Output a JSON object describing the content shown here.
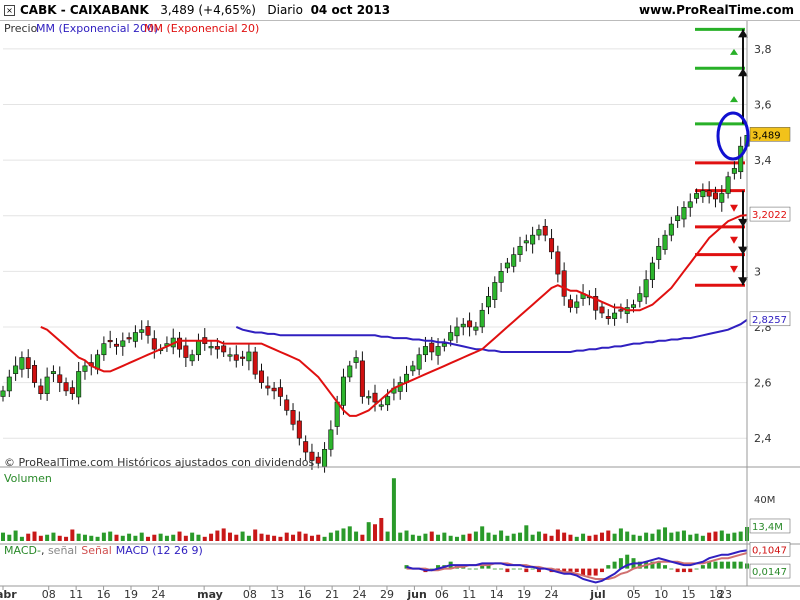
{
  "header": {
    "close_glyph": "×",
    "symbol": "CABK - CAIXABANK",
    "last_change": "3,489 (+4,65%)",
    "period": "Diario",
    "date": "04 oct 2013",
    "site": "www.ProRealTime.com"
  },
  "price_panel": {
    "legend_price": "Precio",
    "legend_mm200": "MM (Exponencial 200)",
    "legend_mm20": "MM (Exponencial 20)",
    "watermark": "© ProRealTime.com  Históricos ajustados con dividendos",
    "y_ticks": [
      "2,4",
      "2,6",
      "2,8",
      "3",
      "3,2",
      "3,4",
      "3,6",
      "3,8"
    ],
    "last_price_badge": "3,489",
    "mm20_badge": "3,2022",
    "mm200_badge": "2,8257"
  },
  "volume_panel": {
    "label": "Volumen",
    "y_tick": "40M",
    "last_badge": "13,4M"
  },
  "macd_panel": {
    "label_macd": "MACD-",
    "label_sep": ", ",
    "label_signal": "señal",
    "label_signal2": "Señal",
    "label_params": "MACD (12 26 9)",
    "badge_top": "0,1047",
    "badge_bottom": "0,0147"
  },
  "x_axis": {
    "labels": [
      {
        "text": "abr",
        "bold": true,
        "idx": 0
      },
      {
        "text": "08",
        "idx": 5
      },
      {
        "text": "11",
        "idx": 8
      },
      {
        "text": "16",
        "idx": 11
      },
      {
        "text": "19",
        "idx": 14
      },
      {
        "text": "24",
        "idx": 17
      },
      {
        "text": "may",
        "bold": true,
        "idx": 22
      },
      {
        "text": "08",
        "idx": 27
      },
      {
        "text": "13",
        "idx": 30
      },
      {
        "text": "16",
        "idx": 33
      },
      {
        "text": "21",
        "idx": 36
      },
      {
        "text": "24",
        "idx": 39
      },
      {
        "text": "29",
        "idx": 42
      },
      {
        "text": "jun",
        "bold": true,
        "idx": 45
      },
      {
        "text": "06",
        "idx": 48
      },
      {
        "text": "11",
        "idx": 51
      },
      {
        "text": "14",
        "idx": 54
      },
      {
        "text": "19",
        "idx": 57
      },
      {
        "text": "24",
        "idx": 60
      },
      {
        "text": "jul",
        "bold": true,
        "idx": 65
      },
      {
        "text": "05",
        "idx": 69
      },
      {
        "text": "10",
        "idx": 72
      },
      {
        "text": "15",
        "idx": 75
      },
      {
        "text": "18",
        "idx": 78
      },
      {
        "text": "23",
        "idx": 81
      }
    ]
  },
  "colors": {
    "up": "#2db52d",
    "down": "#d01010",
    "mm20": "#e01010",
    "mm200": "#3020c0",
    "volume": "#2a9a2a",
    "volume_down": "#c81818",
    "level_green": "#28b028",
    "level_red": "#e01010"
  },
  "chart_data": {
    "type": "candlestick",
    "title": "CABK - CAIXABANK",
    "ylim": [
      2.3,
      3.9
    ],
    "close": [
      2.57,
      2.62,
      2.66,
      2.69,
      2.65,
      2.6,
      2.56,
      2.62,
      2.64,
      2.6,
      2.57,
      2.56,
      2.64,
      2.66,
      2.66,
      2.7,
      2.74,
      2.75,
      2.73,
      2.75,
      2.76,
      2.78,
      2.79,
      2.77,
      2.72,
      2.72,
      2.74,
      2.76,
      2.72,
      2.69,
      2.7,
      2.75,
      2.74,
      2.73,
      2.72,
      2.71,
      2.7,
      2.68,
      2.69,
      2.71,
      2.63,
      2.6,
      2.58,
      2.57,
      2.55,
      2.5,
      2.45,
      2.4,
      2.35,
      2.32,
      2.31,
      2.36,
      2.43,
      2.53,
      2.62,
      2.66,
      2.69,
      2.55,
      2.55,
      2.53,
      2.52,
      2.55,
      2.58,
      2.6,
      2.63,
      2.66,
      2.7,
      2.73,
      2.71,
      2.73,
      2.74,
      2.78,
      2.8,
      2.81,
      2.8,
      2.8,
      2.86,
      2.91,
      2.96,
      3.0,
      3.03,
      3.06,
      3.09,
      3.11,
      3.13,
      3.15,
      3.13,
      3.07,
      2.99,
      2.91,
      2.87,
      2.89,
      2.92,
      2.91,
      2.86,
      2.85,
      2.83,
      2.85,
      2.86,
      2.87,
      2.88,
      2.92,
      2.97,
      3.03,
      3.09,
      3.13,
      3.17,
      3.2,
      3.23,
      3.25,
      3.28,
      3.29,
      3.27,
      3.26,
      3.28,
      3.34,
      3.37,
      3.45,
      3.489
    ],
    "mm20": [
      2.8,
      2.79,
      2.77,
      2.75,
      2.73,
      2.71,
      2.69,
      2.68,
      2.66,
      2.65,
      2.64,
      2.64,
      2.65,
      2.66,
      2.67,
      2.68,
      2.69,
      2.7,
      2.71,
      2.72,
      2.73,
      2.74,
      2.75,
      2.75,
      2.75,
      2.75,
      2.75,
      2.75,
      2.75,
      2.74,
      2.74,
      2.74,
      2.74,
      2.74,
      2.74,
      2.74,
      2.73,
      2.72,
      2.71,
      2.7,
      2.69,
      2.68,
      2.66,
      2.64,
      2.62,
      2.59,
      2.56,
      2.53,
      2.5,
      2.48,
      2.48,
      2.49,
      2.5,
      2.52,
      2.54,
      2.56,
      2.58,
      2.59,
      2.6,
      2.61,
      2.62,
      2.63,
      2.64,
      2.65,
      2.66,
      2.67,
      2.68,
      2.69,
      2.7,
      2.71,
      2.72,
      2.74,
      2.76,
      2.78,
      2.8,
      2.82,
      2.84,
      2.86,
      2.88,
      2.9,
      2.92,
      2.94,
      2.95,
      2.94,
      2.93,
      2.93,
      2.92,
      2.91,
      2.9,
      2.89,
      2.88,
      2.87,
      2.87,
      2.86,
      2.86,
      2.86,
      2.87,
      2.88,
      2.9,
      2.92,
      2.94,
      2.97,
      3.0,
      3.03,
      3.06,
      3.09,
      3.12,
      3.14,
      3.16,
      3.18,
      3.19,
      3.2,
      3.2022
    ],
    "mm200": [
      2.8,
      2.79,
      2.785,
      2.78,
      2.78,
      2.775,
      2.775,
      2.77,
      2.77,
      2.77,
      2.77,
      2.77,
      2.77,
      2.77,
      2.77,
      2.77,
      2.77,
      2.77,
      2.77,
      2.77,
      2.77,
      2.77,
      2.77,
      2.765,
      2.765,
      2.76,
      2.76,
      2.76,
      2.755,
      2.755,
      2.75,
      2.75,
      2.745,
      2.745,
      2.74,
      2.735,
      2.73,
      2.725,
      2.72,
      2.72,
      2.715,
      2.715,
      2.71,
      2.71,
      2.71,
      2.71,
      2.71,
      2.71,
      2.71,
      2.71,
      2.71,
      2.71,
      2.71,
      2.71,
      2.715,
      2.715,
      2.72,
      2.72,
      2.725,
      2.725,
      2.73,
      2.73,
      2.735,
      2.74,
      2.74,
      2.745,
      2.745,
      2.75,
      2.75,
      2.755,
      2.755,
      2.76,
      2.76,
      2.765,
      2.77,
      2.775,
      2.78,
      2.785,
      2.79,
      2.8,
      2.81,
      2.8257
    ],
    "volume_values_M": [
      8,
      6,
      10,
      4,
      7,
      9,
      5,
      6,
      8,
      5,
      4,
      11,
      7,
      6,
      5,
      4,
      8,
      9,
      6,
      5,
      7,
      5,
      8,
      4,
      6,
      7,
      5,
      6,
      9,
      5,
      8,
      6,
      4,
      7,
      10,
      12,
      8,
      6,
      9,
      5,
      11,
      7,
      6,
      5,
      4,
      8,
      6,
      9,
      7,
      5,
      6,
      4,
      8,
      10,
      12,
      14,
      9,
      6,
      18,
      16,
      22,
      9,
      60,
      8,
      10,
      6,
      5,
      7,
      9,
      6,
      8,
      5,
      4,
      6,
      7,
      9,
      14,
      8,
      6,
      10,
      5,
      7,
      8,
      15,
      6,
      9,
      7,
      5,
      11,
      8,
      6,
      4,
      7,
      5,
      6,
      8,
      10,
      7,
      12,
      9,
      6,
      5,
      8,
      7,
      11,
      13,
      8,
      9,
      10,
      6,
      7,
      5,
      8,
      9,
      10,
      7,
      8,
      9,
      13.4
    ],
    "macd_values": [
      0.01,
      0.0,
      0.0,
      -0.01,
      -0.01,
      0.0,
      0.01,
      0.02,
      0.02,
      0.02,
      0.02,
      0.02,
      0.03,
      0.03,
      0.03,
      0.03,
      0.02,
      0.02,
      0.02,
      0.01,
      0.01,
      0.0,
      0.0,
      -0.01,
      -0.02,
      -0.03,
      -0.03,
      -0.04,
      -0.06,
      -0.07,
      -0.08,
      -0.07,
      -0.05,
      -0.03,
      0.0,
      0.02,
      0.03,
      0.03,
      0.04,
      0.05,
      0.06,
      0.05,
      0.04,
      0.03,
      0.02,
      0.02,
      0.03,
      0.04,
      0.06,
      0.07,
      0.08,
      0.08,
      0.09,
      0.1,
      0.1047
    ],
    "signal_values": [
      0.0,
      0.0,
      0.0,
      0.0,
      -0.01,
      -0.01,
      0.0,
      0.0,
      0.01,
      0.01,
      0.02,
      0.02,
      0.02,
      0.02,
      0.03,
      0.03,
      0.03,
      0.02,
      0.02,
      0.02,
      0.01,
      0.01,
      0.0,
      0.0,
      -0.01,
      -0.02,
      -0.02,
      -0.03,
      -0.04,
      -0.05,
      -0.06,
      -0.06,
      -0.06,
      -0.05,
      -0.03,
      -0.02,
      0.0,
      0.01,
      0.02,
      0.03,
      0.04,
      0.04,
      0.04,
      0.04,
      0.03,
      0.03,
      0.03,
      0.03,
      0.04,
      0.05,
      0.06,
      0.06,
      0.07,
      0.08,
      0.09
    ],
    "levels_green": [
      3.87,
      3.73,
      3.53
    ],
    "levels_red": [
      3.39,
      3.29,
      3.16,
      3.06,
      2.95
    ]
  }
}
